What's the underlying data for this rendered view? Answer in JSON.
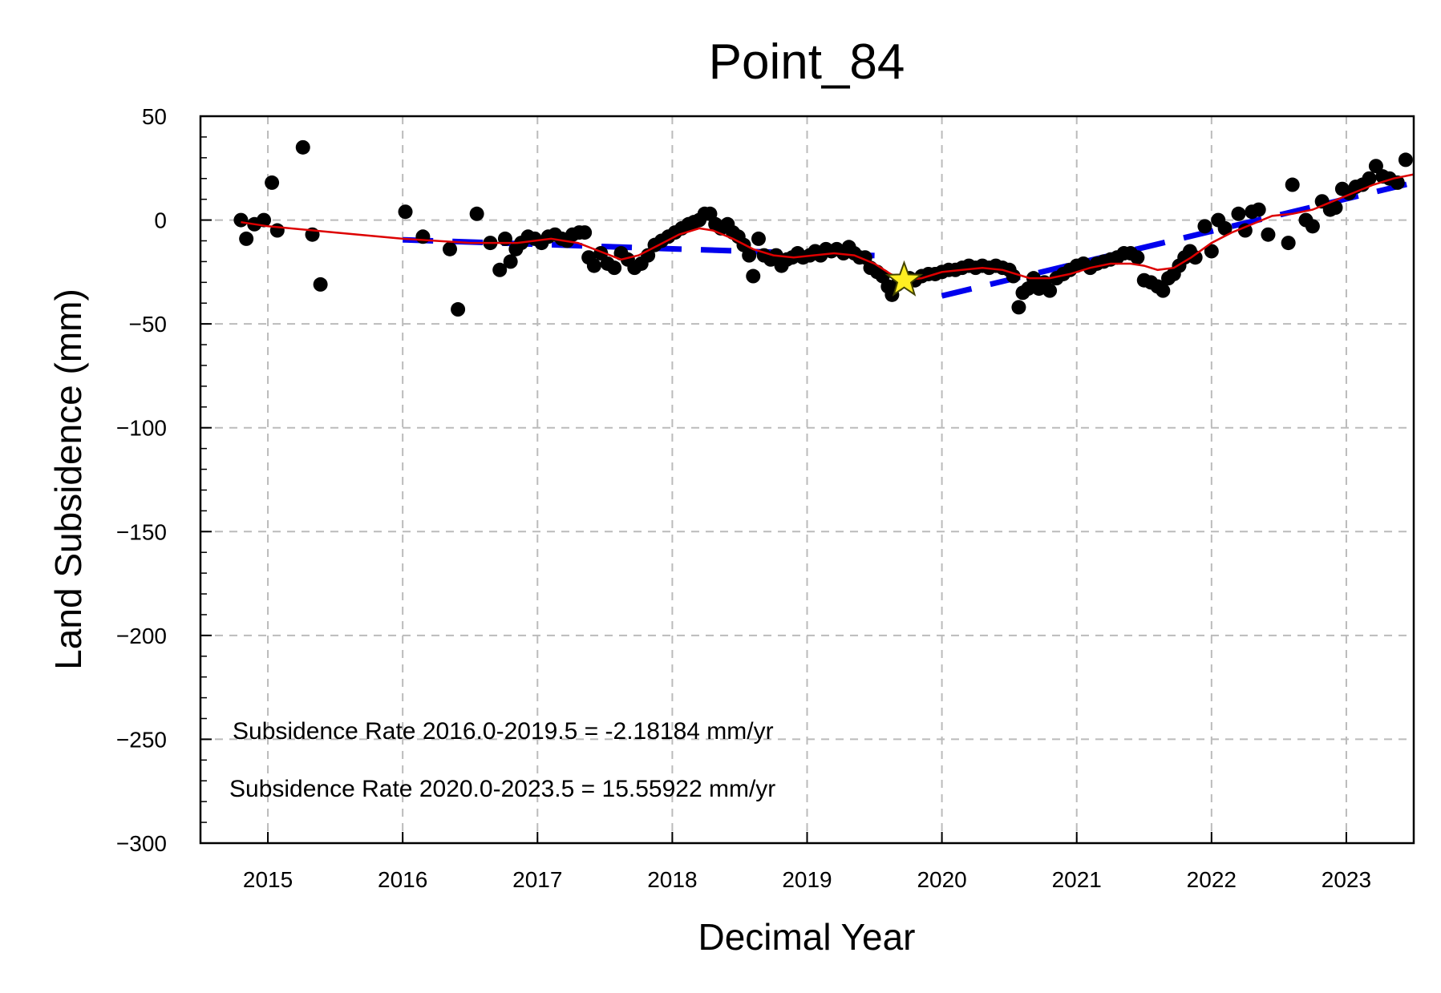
{
  "chart_data": {
    "type": "scatter",
    "title": "Point_84",
    "xlabel": "Decimal Year",
    "ylabel": "Land Subsidence (mm)",
    "xlim": [
      2014.5,
      2023.5
    ],
    "ylim": [
      -300,
      50
    ],
    "x_ticks": [
      2015,
      2016,
      2017,
      2018,
      2019,
      2020,
      2021,
      2022,
      2023
    ],
    "x_tick_labels": [
      "2015",
      "2016",
      "2017",
      "2018",
      "2019",
      "2020",
      "2021",
      "2022",
      "2023"
    ],
    "y_ticks": [
      50,
      0,
      -50,
      -100,
      -150,
      -200,
      -250,
      -300
    ],
    "y_tick_labels": [
      "50",
      "0",
      "−50",
      "−100",
      "−150",
      "−200",
      "−250",
      "−300"
    ],
    "grid": true,
    "colors": {
      "points": "#000000",
      "smooth": "#dd0000",
      "trend": "#0000ee",
      "star": "#ffee22"
    },
    "annotations": [
      "Subsidence Rate 2016.0-2019.5 = -2.18184 mm/yr",
      "Subsidence Rate 2020.0-2023.5 = 15.55922 mm/yr"
    ],
    "series": [
      {
        "type": "scatter",
        "points": [
          [
            2014.8,
            0
          ],
          [
            2014.84,
            -9
          ],
          [
            2014.9,
            -2
          ],
          [
            2014.97,
            0
          ],
          [
            2015.03,
            18
          ],
          [
            2015.07,
            -5
          ],
          [
            2015.26,
            35
          ],
          [
            2015.33,
            -7
          ],
          [
            2015.39,
            -31
          ],
          [
            2016.02,
            4
          ],
          [
            2016.15,
            -8
          ],
          [
            2016.35,
            -14
          ],
          [
            2016.41,
            -43
          ],
          [
            2016.55,
            3
          ],
          [
            2016.65,
            -11
          ],
          [
            2016.72,
            -24
          ],
          [
            2016.76,
            -9
          ],
          [
            2016.8,
            -20
          ],
          [
            2016.84,
            -14
          ],
          [
            2016.88,
            -11
          ],
          [
            2016.93,
            -8
          ],
          [
            2016.98,
            -9
          ],
          [
            2017.03,
            -11
          ],
          [
            2017.08,
            -8
          ],
          [
            2017.13,
            -7
          ],
          [
            2017.18,
            -9
          ],
          [
            2017.22,
            -10
          ],
          [
            2017.26,
            -7
          ],
          [
            2017.31,
            -6
          ],
          [
            2017.35,
            -6
          ],
          [
            2017.38,
            -18
          ],
          [
            2017.42,
            -22
          ],
          [
            2017.47,
            -16
          ],
          [
            2017.52,
            -21
          ],
          [
            2017.57,
            -23
          ],
          [
            2017.62,
            -16
          ],
          [
            2017.67,
            -19
          ],
          [
            2017.72,
            -23
          ],
          [
            2017.77,
            -21
          ],
          [
            2017.82,
            -17
          ],
          [
            2017.87,
            -12
          ],
          [
            2017.92,
            -10
          ],
          [
            2017.97,
            -8
          ],
          [
            2018.02,
            -6
          ],
          [
            2018.07,
            -4
          ],
          [
            2018.12,
            -2
          ],
          [
            2018.16,
            -1
          ],
          [
            2018.2,
            0
          ],
          [
            2018.24,
            3
          ],
          [
            2018.28,
            3
          ],
          [
            2018.32,
            -2
          ],
          [
            2018.36,
            -4
          ],
          [
            2018.41,
            -2
          ],
          [
            2018.45,
            -6
          ],
          [
            2018.49,
            -8
          ],
          [
            2018.53,
            -12
          ],
          [
            2018.57,
            -17
          ],
          [
            2018.6,
            -27
          ],
          [
            2018.64,
            -9
          ],
          [
            2018.68,
            -17
          ],
          [
            2018.73,
            -19
          ],
          [
            2018.77,
            -17
          ],
          [
            2018.81,
            -22
          ],
          [
            2018.85,
            -19
          ],
          [
            2018.89,
            -18
          ],
          [
            2018.93,
            -16
          ],
          [
            2018.97,
            -18
          ],
          [
            2019.02,
            -17
          ],
          [
            2019.06,
            -15
          ],
          [
            2019.1,
            -17
          ],
          [
            2019.14,
            -14
          ],
          [
            2019.18,
            -15
          ],
          [
            2019.22,
            -14
          ],
          [
            2019.27,
            -16
          ],
          [
            2019.31,
            -13
          ],
          [
            2019.35,
            -16
          ],
          [
            2019.39,
            -18
          ],
          [
            2019.43,
            -18
          ],
          [
            2019.47,
            -23
          ],
          [
            2019.52,
            -25
          ],
          [
            2019.56,
            -27
          ],
          [
            2019.6,
            -32
          ],
          [
            2019.63,
            -36
          ],
          [
            2019.67,
            -31
          ],
          [
            2019.71,
            -29
          ],
          [
            2019.76,
            -28
          ],
          [
            2019.8,
            -29
          ],
          [
            2019.85,
            -27
          ],
          [
            2019.9,
            -26
          ],
          [
            2019.95,
            -26
          ],
          [
            2020.0,
            -25
          ],
          [
            2020.05,
            -24
          ],
          [
            2020.1,
            -24
          ],
          [
            2020.15,
            -23
          ],
          [
            2020.2,
            -22
          ],
          [
            2020.25,
            -23
          ],
          [
            2020.3,
            -22
          ],
          [
            2020.35,
            -23
          ],
          [
            2020.4,
            -22
          ],
          [
            2020.45,
            -23
          ],
          [
            2020.5,
            -24
          ],
          [
            2020.53,
            -27
          ],
          [
            2020.57,
            -42
          ],
          [
            2020.6,
            -35
          ],
          [
            2020.64,
            -33
          ],
          [
            2020.68,
            -28
          ],
          [
            2020.72,
            -33
          ],
          [
            2020.76,
            -30
          ],
          [
            2020.8,
            -34
          ],
          [
            2020.85,
            -28
          ],
          [
            2020.9,
            -26
          ],
          [
            2020.95,
            -24
          ],
          [
            2021.0,
            -22
          ],
          [
            2021.05,
            -21
          ],
          [
            2021.1,
            -23
          ],
          [
            2021.15,
            -21
          ],
          [
            2021.2,
            -20
          ],
          [
            2021.25,
            -19
          ],
          [
            2021.3,
            -18
          ],
          [
            2021.35,
            -16
          ],
          [
            2021.4,
            -16
          ],
          [
            2021.45,
            -18
          ],
          [
            2021.5,
            -29
          ],
          [
            2021.55,
            -30
          ],
          [
            2021.6,
            -32
          ],
          [
            2021.64,
            -34
          ],
          [
            2021.68,
            -28
          ],
          [
            2021.72,
            -26
          ],
          [
            2021.76,
            -22
          ],
          [
            2021.8,
            -18
          ],
          [
            2021.84,
            -15
          ],
          [
            2021.88,
            -18
          ],
          [
            2021.95,
            -3
          ],
          [
            2022.0,
            -15
          ],
          [
            2022.05,
            0
          ],
          [
            2022.1,
            -4
          ],
          [
            2022.2,
            3
          ],
          [
            2022.25,
            -5
          ],
          [
            2022.3,
            4
          ],
          [
            2022.35,
            5
          ],
          [
            2022.42,
            -7
          ],
          [
            2022.57,
            -11
          ],
          [
            2022.6,
            17
          ],
          [
            2022.7,
            0
          ],
          [
            2022.75,
            -3
          ],
          [
            2022.82,
            9
          ],
          [
            2022.88,
            5
          ],
          [
            2022.92,
            6
          ],
          [
            2022.97,
            15
          ],
          [
            2023.02,
            13
          ],
          [
            2023.07,
            16
          ],
          [
            2023.12,
            17
          ],
          [
            2023.17,
            20
          ],
          [
            2023.22,
            26
          ],
          [
            2023.27,
            21
          ],
          [
            2023.32,
            20
          ],
          [
            2023.38,
            18
          ],
          [
            2023.44,
            29
          ]
        ]
      },
      {
        "type": "line",
        "points": [
          [
            2014.8,
            -1
          ],
          [
            2015.0,
            -3
          ],
          [
            2015.5,
            -6
          ],
          [
            2016.0,
            -9
          ],
          [
            2016.5,
            -11
          ],
          [
            2016.85,
            -11
          ],
          [
            2017.1,
            -9
          ],
          [
            2017.3,
            -11
          ],
          [
            2017.5,
            -16
          ],
          [
            2017.62,
            -19
          ],
          [
            2017.75,
            -17
          ],
          [
            2017.9,
            -12
          ],
          [
            2018.05,
            -7
          ],
          [
            2018.2,
            -4
          ],
          [
            2018.3,
            -5
          ],
          [
            2018.45,
            -9
          ],
          [
            2018.6,
            -14
          ],
          [
            2018.75,
            -17
          ],
          [
            2018.9,
            -18
          ],
          [
            2019.05,
            -17
          ],
          [
            2019.2,
            -16
          ],
          [
            2019.35,
            -17
          ],
          [
            2019.5,
            -21
          ],
          [
            2019.62,
            -26
          ],
          [
            2019.72,
            -29
          ],
          [
            2019.85,
            -28
          ],
          [
            2020.0,
            -25
          ],
          [
            2020.15,
            -24
          ],
          [
            2020.3,
            -23
          ],
          [
            2020.45,
            -24
          ],
          [
            2020.55,
            -26
          ],
          [
            2020.65,
            -28
          ],
          [
            2020.8,
            -28
          ],
          [
            2020.95,
            -26
          ],
          [
            2021.1,
            -23
          ],
          [
            2021.25,
            -21
          ],
          [
            2021.4,
            -21
          ],
          [
            2021.5,
            -22
          ],
          [
            2021.6,
            -24
          ],
          [
            2021.72,
            -23
          ],
          [
            2021.85,
            -18
          ],
          [
            2022.0,
            -11
          ],
          [
            2022.15,
            -6
          ],
          [
            2022.3,
            -2
          ],
          [
            2022.45,
            2
          ],
          [
            2022.6,
            3
          ],
          [
            2022.75,
            5
          ],
          [
            2022.9,
            9
          ],
          [
            2023.05,
            13
          ],
          [
            2023.2,
            17
          ],
          [
            2023.35,
            20
          ],
          [
            2023.5,
            22
          ]
        ]
      },
      {
        "type": "line",
        "points": [
          [
            2016.0,
            -9.5
          ],
          [
            2019.5,
            -17.1
          ]
        ]
      },
      {
        "type": "line",
        "points": [
          [
            2020.0,
            -36.5
          ],
          [
            2023.5,
            18
          ]
        ]
      },
      {
        "type": "marker",
        "points": [
          [
            2019.72,
            -29
          ]
        ]
      }
    ]
  }
}
